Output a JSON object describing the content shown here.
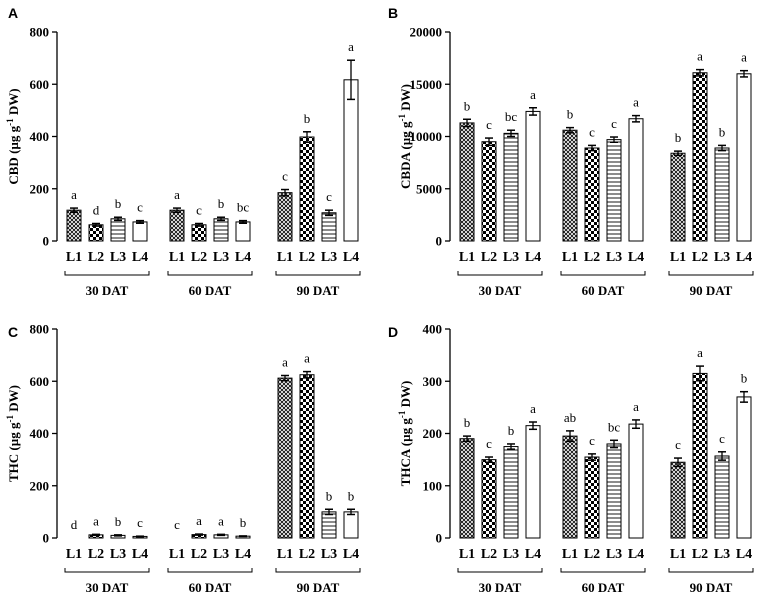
{
  "chart_data": [
    {
      "panel": "A",
      "type": "bar",
      "ylabel": "CBD (µg g⁻¹ DW)",
      "ylabel_main": "CBD (µg g",
      "ylabel_sup": "-1",
      "ylabel_tail": " DW)",
      "ylim": [
        0,
        800
      ],
      "yticks": [
        0,
        200,
        400,
        600,
        800
      ],
      "groups": [
        "30 DAT",
        "60 DAT",
        "90 DAT"
      ],
      "categories": [
        "L1",
        "L2",
        "L3",
        "L4"
      ],
      "values": [
        [
          118,
          62,
          85,
          73
        ],
        [
          118,
          62,
          85,
          73
        ],
        [
          185,
          398,
          108,
          617
        ]
      ],
      "errors": [
        [
          8,
          5,
          6,
          5
        ],
        [
          8,
          5,
          6,
          5
        ],
        [
          12,
          20,
          10,
          75
        ]
      ],
      "letters": [
        [
          "a",
          "d",
          "b",
          "c"
        ],
        [
          "a",
          "c",
          "b",
          "bc"
        ],
        [
          "c",
          "b",
          "c",
          "a"
        ]
      ]
    },
    {
      "panel": "B",
      "type": "bar",
      "ylabel": "CBDA (µg g⁻¹ DW)",
      "ylabel_main": "CBDA (µg g",
      "ylabel_sup": "-1",
      "ylabel_tail": " DW)",
      "ylim": [
        0,
        20000
      ],
      "yticks": [
        0,
        5000,
        10000,
        15000,
        20000
      ],
      "groups": [
        "30 DAT",
        "60 DAT",
        "90 DAT"
      ],
      "categories": [
        "L1",
        "L2",
        "L3",
        "L4"
      ],
      "values": [
        [
          11300,
          9500,
          10300,
          12400
        ],
        [
          10600,
          8900,
          9700,
          11700
        ],
        [
          8400,
          16100,
          8900,
          16000
        ]
      ],
      "errors": [
        [
          350,
          350,
          300,
          350
        ],
        [
          250,
          250,
          250,
          300
        ],
        [
          200,
          300,
          250,
          300
        ]
      ],
      "letters": [
        [
          "b",
          "c",
          "bc",
          "a"
        ],
        [
          "b",
          "c",
          "c",
          "a"
        ],
        [
          "b",
          "a",
          "b",
          "a"
        ]
      ]
    },
    {
      "panel": "C",
      "type": "bar",
      "ylabel": "THC (µg g⁻¹ DW)",
      "ylabel_main": "THC (µg g",
      "ylabel_sup": "-1",
      "ylabel_tail": " DW)",
      "ylim": [
        0,
        800
      ],
      "yticks": [
        0,
        200,
        400,
        600,
        800
      ],
      "groups": [
        "30 DAT",
        "60 DAT",
        "90 DAT"
      ],
      "categories": [
        "L1",
        "L2",
        "L3",
        "L4"
      ],
      "values": [
        [
          0,
          12,
          10,
          6
        ],
        [
          0,
          13,
          12,
          7
        ],
        [
          612,
          625,
          100,
          100
        ]
      ],
      "errors": [
        [
          0,
          2,
          2,
          1
        ],
        [
          0,
          2,
          2,
          1
        ],
        [
          10,
          12,
          10,
          10
        ]
      ],
      "letters": [
        [
          "d",
          "a",
          "b",
          "c"
        ],
        [
          "c",
          "a",
          "a",
          "b"
        ],
        [
          "a",
          "a",
          "b",
          "b"
        ]
      ]
    },
    {
      "panel": "D",
      "type": "bar",
      "ylabel": "THCA (µg g⁻¹ DW)",
      "ylabel_main": "THCA (µg g",
      "ylabel_sup": "-1",
      "ylabel_tail": " DW)",
      "ylim": [
        0,
        400
      ],
      "yticks": [
        0,
        100,
        200,
        300,
        400
      ],
      "groups": [
        "30 DAT",
        "60 DAT",
        "90 DAT"
      ],
      "categories": [
        "L1",
        "L2",
        "L3",
        "L4"
      ],
      "values": [
        [
          190,
          150,
          175,
          215
        ],
        [
          195,
          155,
          180,
          218
        ],
        [
          145,
          315,
          157,
          270
        ]
      ],
      "errors": [
        [
          5,
          5,
          5,
          7
        ],
        [
          10,
          6,
          7,
          8
        ],
        [
          8,
          14,
          8,
          10
        ]
      ],
      "letters": [
        [
          "b",
          "c",
          "b",
          "a"
        ],
        [
          "ab",
          "c",
          "bc",
          "a"
        ],
        [
          "c",
          "a",
          "c",
          "b"
        ]
      ]
    }
  ]
}
